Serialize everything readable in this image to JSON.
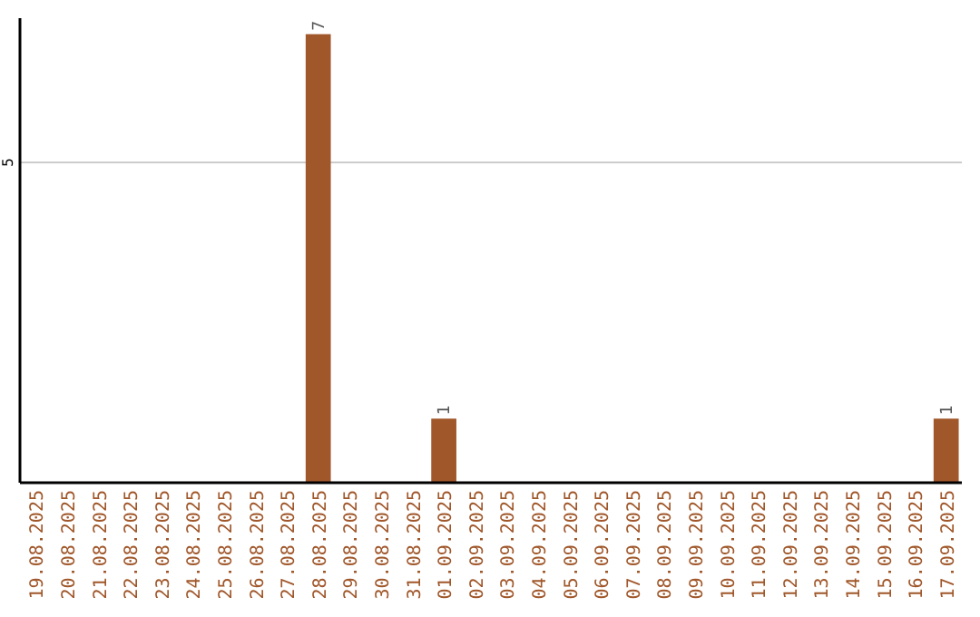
{
  "chart_data": {
    "type": "bar",
    "categories": [
      "19.08.2025",
      "20.08.2025",
      "21.08.2025",
      "22.08.2025",
      "23.08.2025",
      "24.08.2025",
      "25.08.2025",
      "26.08.2025",
      "27.08.2025",
      "28.08.2025",
      "29.08.2025",
      "30.08.2025",
      "31.08.2025",
      "01.09.2025",
      "02.09.2025",
      "03.09.2025",
      "04.09.2025",
      "05.09.2025",
      "06.09.2025",
      "07.09.2025",
      "08.09.2025",
      "09.09.2025",
      "10.09.2025",
      "11.09.2025",
      "12.09.2025",
      "13.09.2025",
      "14.09.2025",
      "15.09.2025",
      "16.09.2025",
      "17.09.2025"
    ],
    "values": [
      0,
      0,
      0,
      0,
      0,
      0,
      0,
      0,
      0,
      7,
      0,
      0,
      0,
      1,
      0,
      0,
      0,
      0,
      0,
      0,
      0,
      0,
      0,
      0,
      0,
      0,
      0,
      0,
      0,
      1
    ],
    "value_labels": [
      null,
      null,
      null,
      null,
      null,
      null,
      null,
      null,
      null,
      "7",
      null,
      null,
      null,
      "1",
      null,
      null,
      null,
      null,
      null,
      null,
      null,
      null,
      null,
      null,
      null,
      null,
      null,
      null,
      null,
      "1"
    ],
    "color": "#a0572a",
    "ylim": [
      0,
      7.25
    ],
    "yticks": [
      5
    ],
    "grid": "y"
  }
}
